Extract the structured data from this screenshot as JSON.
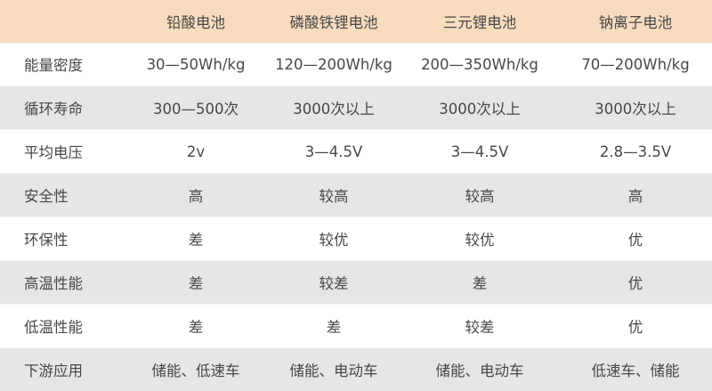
{
  "colors": {
    "header_bg": "#f8dcbe",
    "row_alt_bg": "#e6e6e6",
    "text": "#474747"
  },
  "table": {
    "headers": [
      "",
      "铅酸电池",
      "磷酸铁锂电池",
      "三元锂电池",
      "钠离子电池"
    ],
    "rows": [
      [
        "能量密度",
        "30—50Wh/kg",
        "120—200Wh/kg",
        "200—350Wh/kg",
        "70—200Wh/kg"
      ],
      [
        "循环寿命",
        "300—500次",
        "3000次以上",
        "3000次以上",
        "3000次以上"
      ],
      [
        "平均电压",
        "2v",
        "3—4.5V",
        "3—4.5V",
        "2.8—3.5V"
      ],
      [
        "安全性",
        "高",
        "较高",
        "较高",
        "高"
      ],
      [
        "环保性",
        "差",
        "较优",
        "较优",
        "优"
      ],
      [
        "高温性能",
        "差",
        "较差",
        "差",
        "优"
      ],
      [
        "低温性能",
        "差",
        "差",
        "较差",
        "优"
      ],
      [
        "下游应用",
        "储能、低速车",
        "储能、电动车",
        "储能、电动车",
        "低速车、储能"
      ]
    ]
  }
}
